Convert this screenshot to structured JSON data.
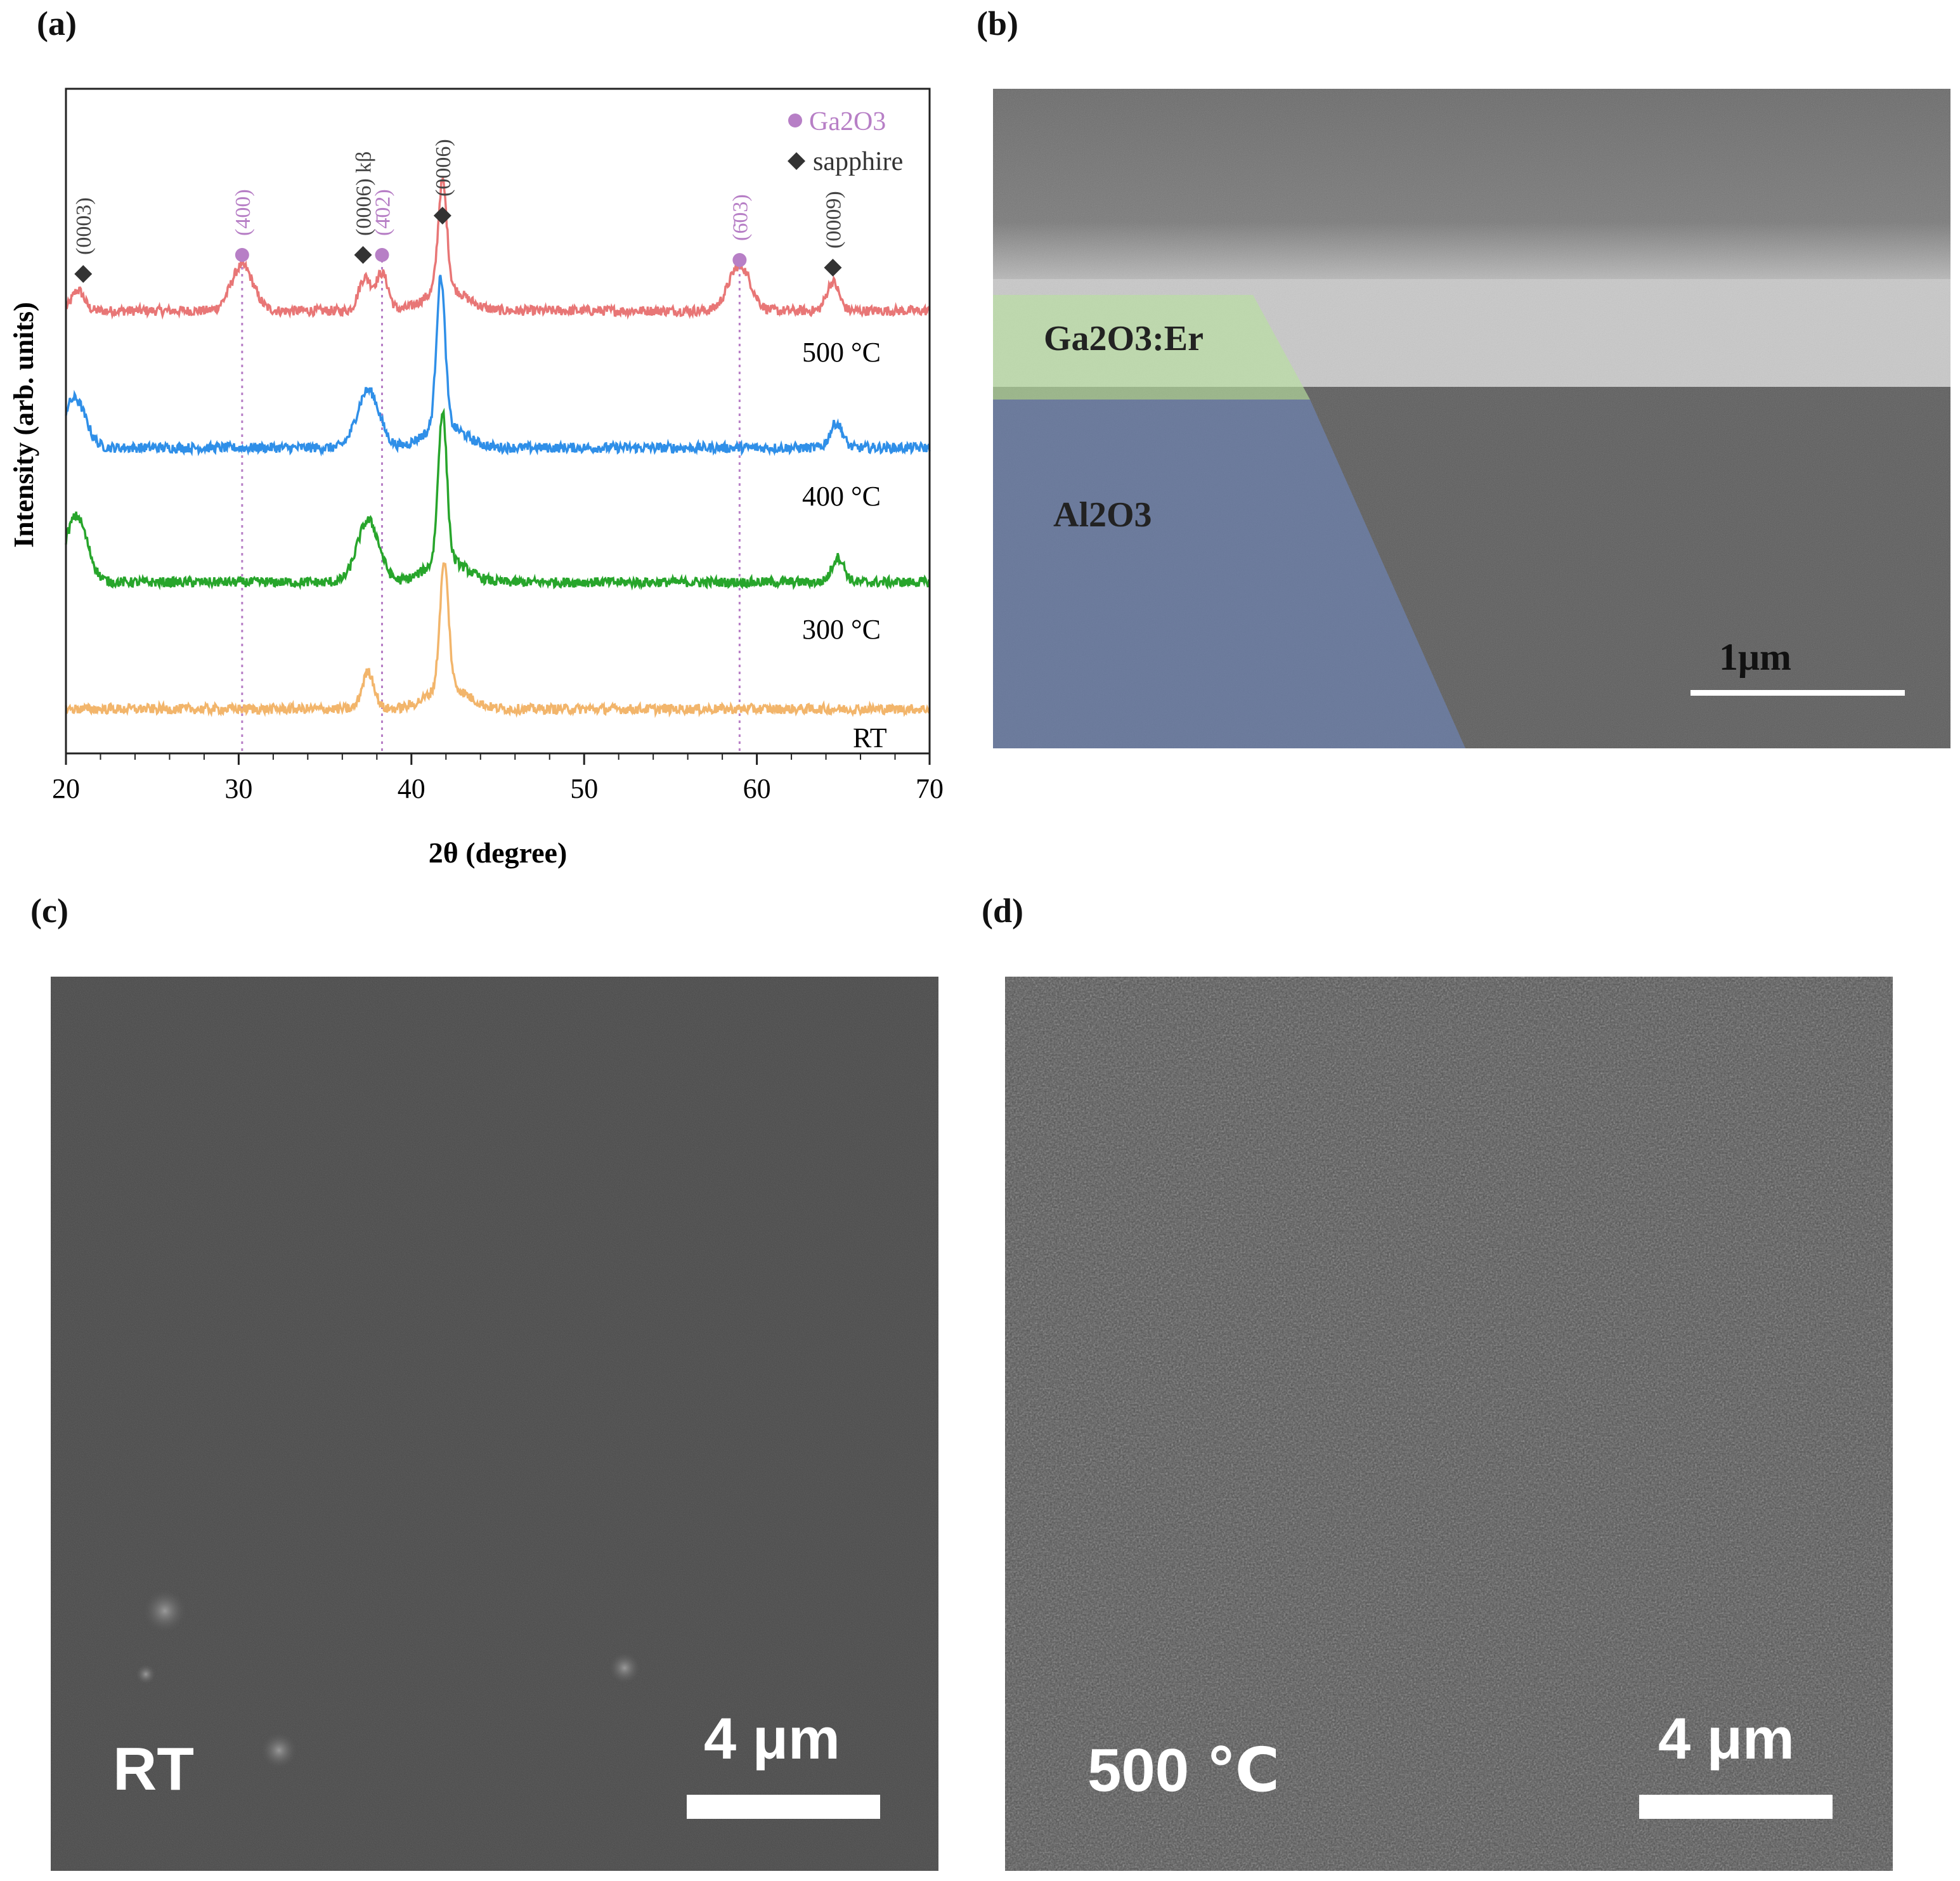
{
  "panels": {
    "a": "(a)",
    "b": "(b)",
    "c": "(c)",
    "d": "(d)"
  },
  "chart_data": {
    "type": "line",
    "xlabel": "2θ (degree)",
    "ylabel": "Intensity (arb. units)",
    "xlim": [
      20,
      70
    ],
    "xticks": [
      20,
      30,
      40,
      50,
      60,
      70
    ],
    "grid": false,
    "legend_position": "top-right",
    "legend": [
      {
        "label": "Ga2O3",
        "marker": "circle",
        "color": "#b77fc6"
      },
      {
        "label": "sapphire",
        "marker": "diamond",
        "color": "#333333"
      }
    ],
    "series": [
      {
        "name": "500 °C",
        "color": "#e87676",
        "peaks": [
          [
            20.7,
            0.25
          ],
          [
            30.2,
            0.55
          ],
          [
            37.3,
            0.4
          ],
          [
            38.3,
            0.45
          ],
          [
            41.8,
            1.3
          ],
          [
            59.0,
            0.55
          ],
          [
            64.4,
            0.35
          ]
        ]
      },
      {
        "name": "400 °C",
        "color": "#2f8fe8",
        "peaks": [
          [
            20.5,
            0.6
          ],
          [
            37.5,
            0.7
          ],
          [
            41.7,
            1.8
          ],
          [
            64.6,
            0.3
          ]
        ]
      },
      {
        "name": "300 °C",
        "color": "#27a52b",
        "peaks": [
          [
            20.6,
            0.8
          ],
          [
            37.5,
            0.75
          ],
          [
            41.8,
            1.8
          ],
          [
            64.7,
            0.3
          ]
        ]
      },
      {
        "name": "RT",
        "color": "#f2b56b",
        "peaks": [
          [
            37.5,
            0.45
          ],
          [
            41.9,
            1.5
          ]
        ]
      }
    ],
    "peak_annotations": [
      {
        "x": 21.0,
        "label": "(0003)",
        "phase": "sapphire"
      },
      {
        "x": 30.2,
        "label": "(400)",
        "phase": "Ga2O3"
      },
      {
        "x": 37.2,
        "label": "(0006) kβ",
        "phase": "sapphire"
      },
      {
        "x": 38.3,
        "label": "(4̄02)",
        "phase": "Ga2O3"
      },
      {
        "x": 41.8,
        "label": "(0006)",
        "phase": "sapphire"
      },
      {
        "x": 59.0,
        "label": "(6̄03)",
        "phase": "Ga2O3"
      },
      {
        "x": 64.4,
        "label": "(0009)",
        "phase": "sapphire"
      }
    ],
    "dotted_reference_lines": [
      30.2,
      38.3,
      59.0
    ]
  },
  "sem_b": {
    "layer1": "Ga2O3:Er",
    "layer2": "Al2O3",
    "scale": "1μm"
  },
  "sem_c": {
    "label": "RT",
    "scale": "4 μm"
  },
  "sem_d": {
    "label": "500 ℃",
    "scale": "4 μm"
  },
  "colors": {
    "ga2o3": "#b77fc6",
    "sapphire": "#333333",
    "ga2o3_overlay": "#b8e0a0",
    "al2o3_overlay": "#6f86b8"
  }
}
